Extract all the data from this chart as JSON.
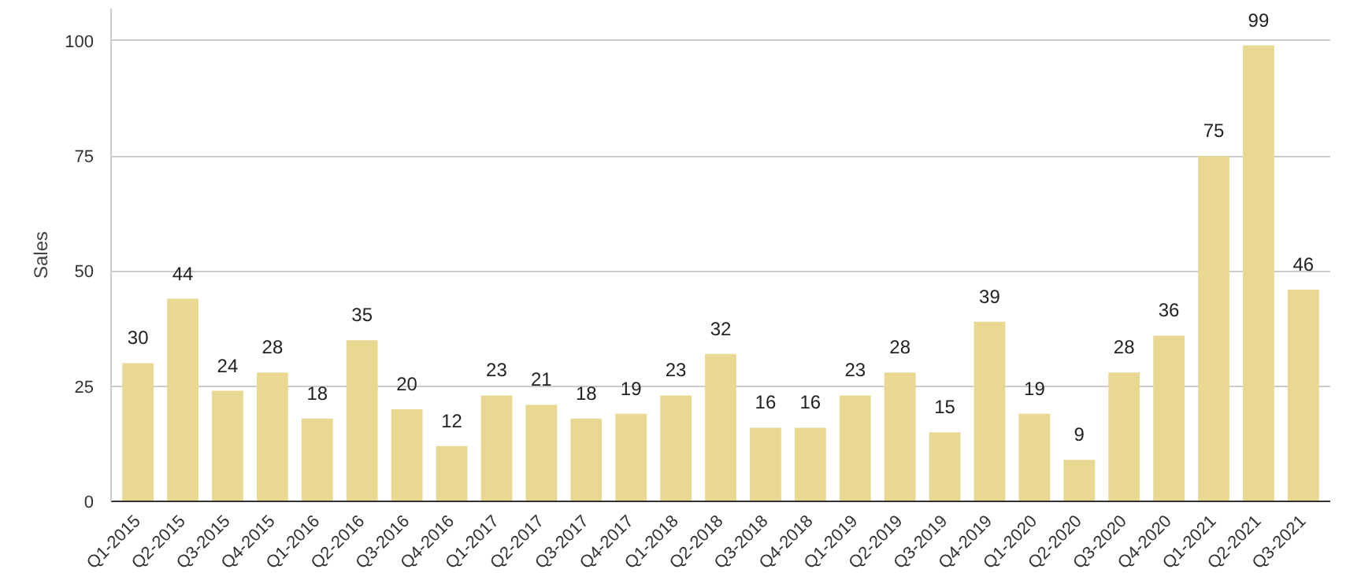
{
  "chart_data": {
    "type": "bar",
    "ylabel": "Sales",
    "categories": [
      "Q1-2015",
      "Q2-2015",
      "Q3-2015",
      "Q4-2015",
      "Q1-2016",
      "Q2-2016",
      "Q3-2016",
      "Q4-2016",
      "Q1-2017",
      "Q2-2017",
      "Q3-2017",
      "Q4-2017",
      "Q1-2018",
      "Q2-2018",
      "Q3-2018",
      "Q4-2018",
      "Q1-2019",
      "Q2-2019",
      "Q3-2019",
      "Q4-2019",
      "Q1-2020",
      "Q2-2020",
      "Q3-2020",
      "Q4-2020",
      "Q1-2021",
      "Q2-2021",
      "Q3-2021"
    ],
    "values": [
      30,
      44,
      24,
      28,
      18,
      35,
      20,
      12,
      23,
      21,
      18,
      19,
      23,
      32,
      16,
      16,
      23,
      28,
      15,
      39,
      19,
      9,
      28,
      36,
      75,
      99,
      46
    ],
    "color": "#e8d892",
    "ylim": [
      0,
      107
    ],
    "yticks": [
      0,
      25,
      50,
      75,
      100
    ],
    "grid": "y",
    "data_labels": true
  }
}
